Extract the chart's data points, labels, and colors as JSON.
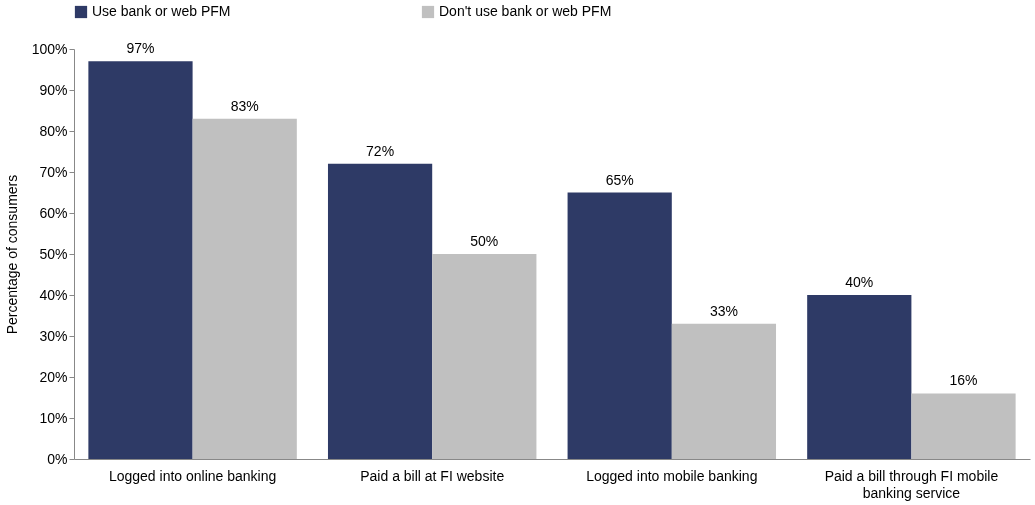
{
  "chart_data": {
    "type": "bar",
    "ylabel": "Percentage of consumers",
    "categories": [
      "Logged into online banking",
      "Paid a bill at FI website",
      "Logged into mobile banking",
      "Paid a bill through FI mobile banking service"
    ],
    "series": [
      {
        "name": "Use bank or web PFM",
        "color": "#2e3a66",
        "values": [
          97,
          72,
          65,
          40
        ],
        "value_labels": [
          "97%",
          "72%",
          "65%",
          "40%"
        ]
      },
      {
        "name": "Don't use bank or web PFM",
        "color": "#c0c0c0",
        "values": [
          83,
          50,
          33,
          16
        ],
        "value_labels": [
          "83%",
          "50%",
          "33%",
          "16%"
        ]
      }
    ],
    "ylim": [
      0,
      100
    ],
    "yticks": [
      {
        "value": 0,
        "label": "0%"
      },
      {
        "value": 10,
        "label": "10%"
      },
      {
        "value": 20,
        "label": "20%"
      },
      {
        "value": 30,
        "label": "30%"
      },
      {
        "value": 40,
        "label": "40%"
      },
      {
        "value": 50,
        "label": "50%"
      },
      {
        "value": 60,
        "label": "60%"
      },
      {
        "value": 70,
        "label": "70%"
      },
      {
        "value": 80,
        "label": "80%"
      },
      {
        "value": 90,
        "label": "90%"
      },
      {
        "value": 100,
        "label": "100%"
      }
    ],
    "legend": "top"
  }
}
